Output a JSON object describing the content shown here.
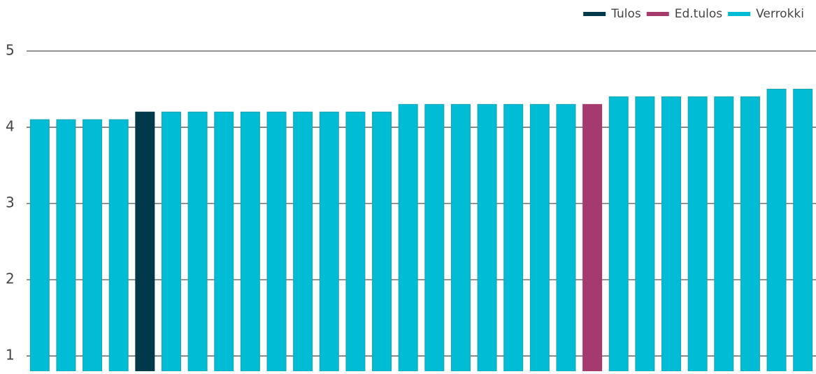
{
  "chart_data": {
    "type": "bar",
    "categories": [
      null,
      null,
      null,
      null,
      null,
      null,
      null,
      null,
      null,
      null,
      null,
      null,
      null,
      null,
      null,
      null,
      null,
      null,
      null,
      null,
      null,
      null,
      null,
      null,
      null,
      null,
      null,
      null,
      null,
      null
    ],
    "series": [
      {
        "name": "Tulos",
        "color": "#003a4a",
        "values": [
          null,
          null,
          null,
          null,
          4.2,
          null,
          null,
          null,
          null,
          null,
          null,
          null,
          null,
          null,
          null,
          null,
          null,
          null,
          null,
          null,
          null,
          null,
          null,
          null,
          null,
          null,
          null,
          null,
          null,
          null
        ]
      },
      {
        "name": "Ed.tulos",
        "color": "#a53a6e",
        "values": [
          null,
          null,
          null,
          null,
          null,
          null,
          null,
          null,
          null,
          null,
          null,
          null,
          null,
          null,
          null,
          null,
          null,
          null,
          null,
          null,
          null,
          4.3,
          null,
          null,
          null,
          null,
          null,
          null,
          null,
          null
        ]
      },
      {
        "name": "Verrokki",
        "color": "#00bcd4",
        "values": [
          4.1,
          4.1,
          4.1,
          4.1,
          null,
          4.2,
          4.2,
          4.2,
          4.2,
          4.2,
          4.2,
          4.2,
          4.2,
          4.2,
          4.3,
          4.3,
          4.3,
          4.3,
          4.3,
          4.3,
          4.3,
          null,
          4.4,
          4.4,
          4.4,
          4.4,
          4.4,
          4.4,
          4.5,
          4.5
        ]
      }
    ],
    "ylim": [
      0.8,
      5
    ],
    "yticks": [
      1,
      2,
      3,
      4,
      5
    ],
    "grid": true,
    "legend": "top-right"
  }
}
